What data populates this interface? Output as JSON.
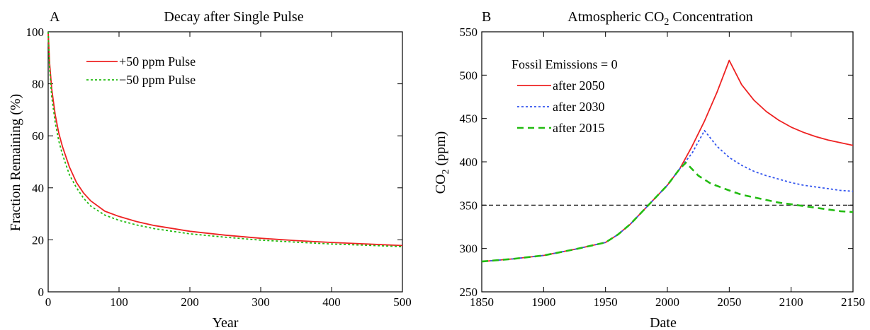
{
  "colors": {
    "red": "#ee2222",
    "green": "#22bb11",
    "blue": "#3355ee",
    "black": "#000000"
  },
  "chart_data": [
    {
      "type": "line",
      "panel_letter": "A",
      "title": "Decay after Single Pulse",
      "xlabel": "Year",
      "ylabel": "Fraction Remaining (%)",
      "xlim": [
        0,
        500
      ],
      "ylim": [
        0,
        100
      ],
      "xticks": [
        0,
        100,
        200,
        300,
        400,
        500
      ],
      "yticks": [
        0,
        20,
        40,
        60,
        80,
        100
      ],
      "grid": false,
      "legend_position": "top-left",
      "series": [
        {
          "name": "+50 ppm Pulse",
          "color": "#ee2222",
          "style": "solid",
          "x": [
            0,
            2,
            5,
            10,
            15,
            20,
            30,
            40,
            50,
            60,
            80,
            100,
            125,
            150,
            200,
            250,
            300,
            350,
            400,
            450,
            500
          ],
          "y": [
            100,
            88,
            78,
            68,
            61,
            56,
            48,
            42,
            38,
            35,
            31,
            29,
            27,
            25.5,
            23.3,
            21.8,
            20.6,
            19.7,
            19.0,
            18.4,
            17.8
          ]
        },
        {
          "name": "−50 ppm Pulse",
          "color": "#22bb11",
          "style": "dotted",
          "x": [
            0,
            2,
            5,
            10,
            15,
            20,
            30,
            40,
            50,
            60,
            80,
            100,
            125,
            150,
            200,
            250,
            300,
            350,
            400,
            450,
            500
          ],
          "y": [
            100,
            86,
            75,
            65,
            58,
            53,
            45,
            40,
            36,
            33,
            29.5,
            27.5,
            25.7,
            24.3,
            22.3,
            21.0,
            19.9,
            19.1,
            18.4,
            17.9,
            17.4
          ]
        }
      ]
    },
    {
      "type": "line",
      "panel_letter": "B",
      "title_main": "Atmospheric CO",
      "title_sub": "2",
      "title_tail": " Concentration",
      "xlabel": "Date",
      "ylabel_main": "CO",
      "ylabel_sub": "2",
      "ylabel_tail": " (ppm)",
      "xlim": [
        1850,
        2150
      ],
      "ylim": [
        250,
        550
      ],
      "xticks": [
        1850,
        1900,
        1950,
        2000,
        2050,
        2100,
        2150
      ],
      "yticks": [
        250,
        300,
        350,
        400,
        450,
        500,
        550
      ],
      "grid": false,
      "legend_title": "Fossil Emissions = 0",
      "legend_position": "top-left",
      "reference_line": {
        "y": 350,
        "color": "#000000",
        "style": "dashed"
      },
      "series": [
        {
          "name": "after 2050",
          "color": "#ee2222",
          "style": "solid",
          "x": [
            1850,
            1875,
            1900,
            1925,
            1950,
            1960,
            1970,
            1980,
            1990,
            2000,
            2010,
            2020,
            2030,
            2040,
            2050,
            2060,
            2070,
            2080,
            2090,
            2100,
            2110,
            2120,
            2130,
            2140,
            2150
          ],
          "y": [
            285,
            288,
            292,
            299,
            307,
            316,
            328,
            343,
            358,
            373,
            392,
            418,
            447,
            480,
            517,
            489,
            471,
            458,
            448,
            440,
            434,
            429,
            425,
            422,
            419
          ]
        },
        {
          "name": "after 2030",
          "color": "#3355ee",
          "style": "dotted",
          "x": [
            1850,
            1875,
            1900,
            1925,
            1950,
            1960,
            1970,
            1980,
            1990,
            2000,
            2010,
            2020,
            2030,
            2040,
            2050,
            2060,
            2070,
            2080,
            2090,
            2100,
            2110,
            2120,
            2130,
            2140,
            2150
          ],
          "y": [
            285,
            288,
            292,
            299,
            307,
            316,
            328,
            343,
            358,
            373,
            392,
            410,
            436,
            418,
            405,
            396,
            389,
            384,
            380,
            376,
            373,
            371,
            369,
            367,
            366
          ]
        },
        {
          "name": "after 2015",
          "color": "#22bb11",
          "style": "dashed",
          "x": [
            1850,
            1875,
            1900,
            1925,
            1950,
            1960,
            1970,
            1980,
            1990,
            2000,
            2010,
            2015,
            2025,
            2035,
            2050,
            2060,
            2070,
            2080,
            2090,
            2100,
            2110,
            2120,
            2130,
            2140,
            2150
          ],
          "y": [
            285,
            288,
            292,
            299,
            307,
            316,
            328,
            343,
            358,
            373,
            392,
            399,
            384,
            375,
            367,
            362,
            359,
            356,
            353,
            351,
            349,
            347,
            345,
            343,
            342
          ]
        }
      ]
    }
  ]
}
